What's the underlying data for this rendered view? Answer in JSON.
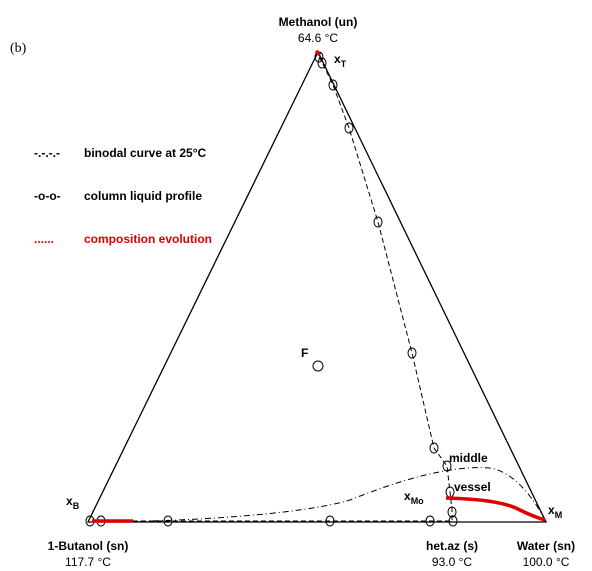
{
  "panel_label": "(b)",
  "vertices": {
    "top": {
      "name": "Methanol (un)",
      "temp": "64.6 °C"
    },
    "left": {
      "name": "1-Butanol (sn)",
      "temp": "117.7 °C"
    },
    "azeotrope": {
      "name": "het.az (s)",
      "temp": "93.0 °C"
    },
    "right": {
      "name": "Water (sn)",
      "temp": "100.0 °C"
    }
  },
  "legend": [
    {
      "symbol": "-.-.-.-",
      "text": "binodal curve at 25°C"
    },
    {
      "symbol": "-o-o-",
      "text": "column liquid profile"
    },
    {
      "symbol": "......",
      "text": "composition evolution"
    }
  ],
  "points": {
    "xT": {
      "main": "x",
      "sub": "T"
    },
    "xB": {
      "main": "x",
      "sub": "B"
    },
    "xM": {
      "main": "x",
      "sub": "M"
    },
    "xMo": {
      "main": "x",
      "sub": "Mo"
    },
    "F": "F"
  },
  "annotations": {
    "middle": "middle",
    "vessel": "vessel"
  }
}
